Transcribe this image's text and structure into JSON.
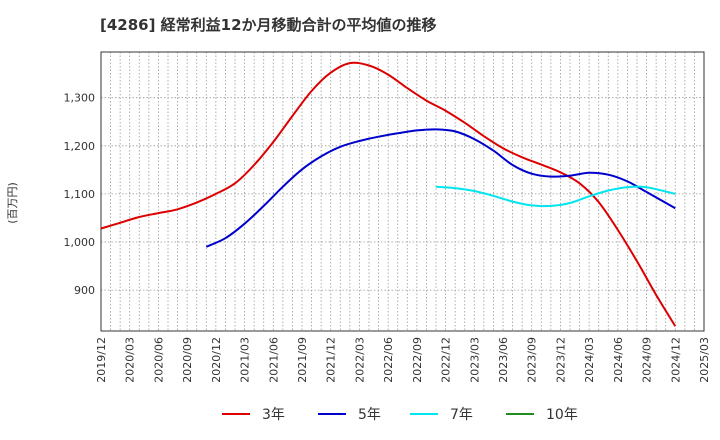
{
  "chart_data": {
    "type": "line",
    "title": "[4286]  経常利益12か月移動合計の平均値の推移",
    "ylabel": "(百万円)",
    "xlabel": "",
    "ylim": [
      815,
      1395
    ],
    "yticks": [
      900,
      1000,
      1100,
      1200,
      1300
    ],
    "ytick_labels": [
      "900",
      "1,000",
      "1,100",
      "1,200",
      "1,300"
    ],
    "xlim": [
      "2019-12",
      "2025-03"
    ],
    "xticks": [
      "2019/12",
      "2020/03",
      "2020/06",
      "2020/09",
      "2020/12",
      "2021/03",
      "2021/06",
      "2021/09",
      "2021/12",
      "2022/03",
      "2022/06",
      "2022/09",
      "2022/12",
      "2023/03",
      "2023/06",
      "2023/09",
      "2023/12",
      "2024/03",
      "2024/06",
      "2024/09",
      "2024/12",
      "2025/03"
    ],
    "grid": true,
    "legend_position": "bottom",
    "series": [
      {
        "name": "3年",
        "color": "#dd0000",
        "x": [
          "2019-12",
          "2020-02",
          "2020-04",
          "2020-06",
          "2020-08",
          "2020-10",
          "2020-12",
          "2021-02",
          "2021-04",
          "2021-06",
          "2021-08",
          "2021-10",
          "2021-12",
          "2022-02",
          "2022-04",
          "2022-06",
          "2022-08",
          "2022-10",
          "2022-12",
          "2023-02",
          "2023-04",
          "2023-06",
          "2023-08",
          "2023-10",
          "2023-12",
          "2024-02",
          "2024-04",
          "2024-06",
          "2024-08",
          "2024-10",
          "2024-12"
        ],
        "values": [
          1028,
          1040,
          1052,
          1060,
          1068,
          1082,
          1100,
          1122,
          1160,
          1208,
          1262,
          1314,
          1352,
          1372,
          1367,
          1348,
          1320,
          1294,
          1273,
          1248,
          1220,
          1195,
          1176,
          1161,
          1145,
          1122,
          1083,
          1025,
          960,
          890,
          825
        ]
      },
      {
        "name": "5年",
        "color": "#0000cc",
        "x": [
          "2020-11",
          "2021-01",
          "2021-03",
          "2021-05",
          "2021-07",
          "2021-09",
          "2021-11",
          "2022-01",
          "2022-03",
          "2022-05",
          "2022-07",
          "2022-09",
          "2022-11",
          "2023-01",
          "2023-03",
          "2023-05",
          "2023-07",
          "2023-09",
          "2023-11",
          "2024-01",
          "2024-03",
          "2024-05",
          "2024-07",
          "2024-09",
          "2024-12"
        ],
        "values": [
          990,
          1008,
          1038,
          1075,
          1115,
          1151,
          1178,
          1198,
          1210,
          1219,
          1226,
          1232,
          1234,
          1230,
          1214,
          1190,
          1160,
          1142,
          1136,
          1138,
          1144,
          1140,
          1126,
          1104,
          1070
        ]
      },
      {
        "name": "7年",
        "color": "#00e5ee",
        "x": [
          "2022-11",
          "2023-01",
          "2023-03",
          "2023-05",
          "2023-07",
          "2023-09",
          "2023-11",
          "2024-01",
          "2024-03",
          "2024-05",
          "2024-07",
          "2024-09",
          "2024-12"
        ],
        "values": [
          1115,
          1112,
          1106,
          1096,
          1084,
          1076,
          1075,
          1081,
          1095,
          1107,
          1114,
          1114,
          1100
        ]
      },
      {
        "name": "10年",
        "color": "#228b22",
        "x": [],
        "values": []
      }
    ]
  }
}
